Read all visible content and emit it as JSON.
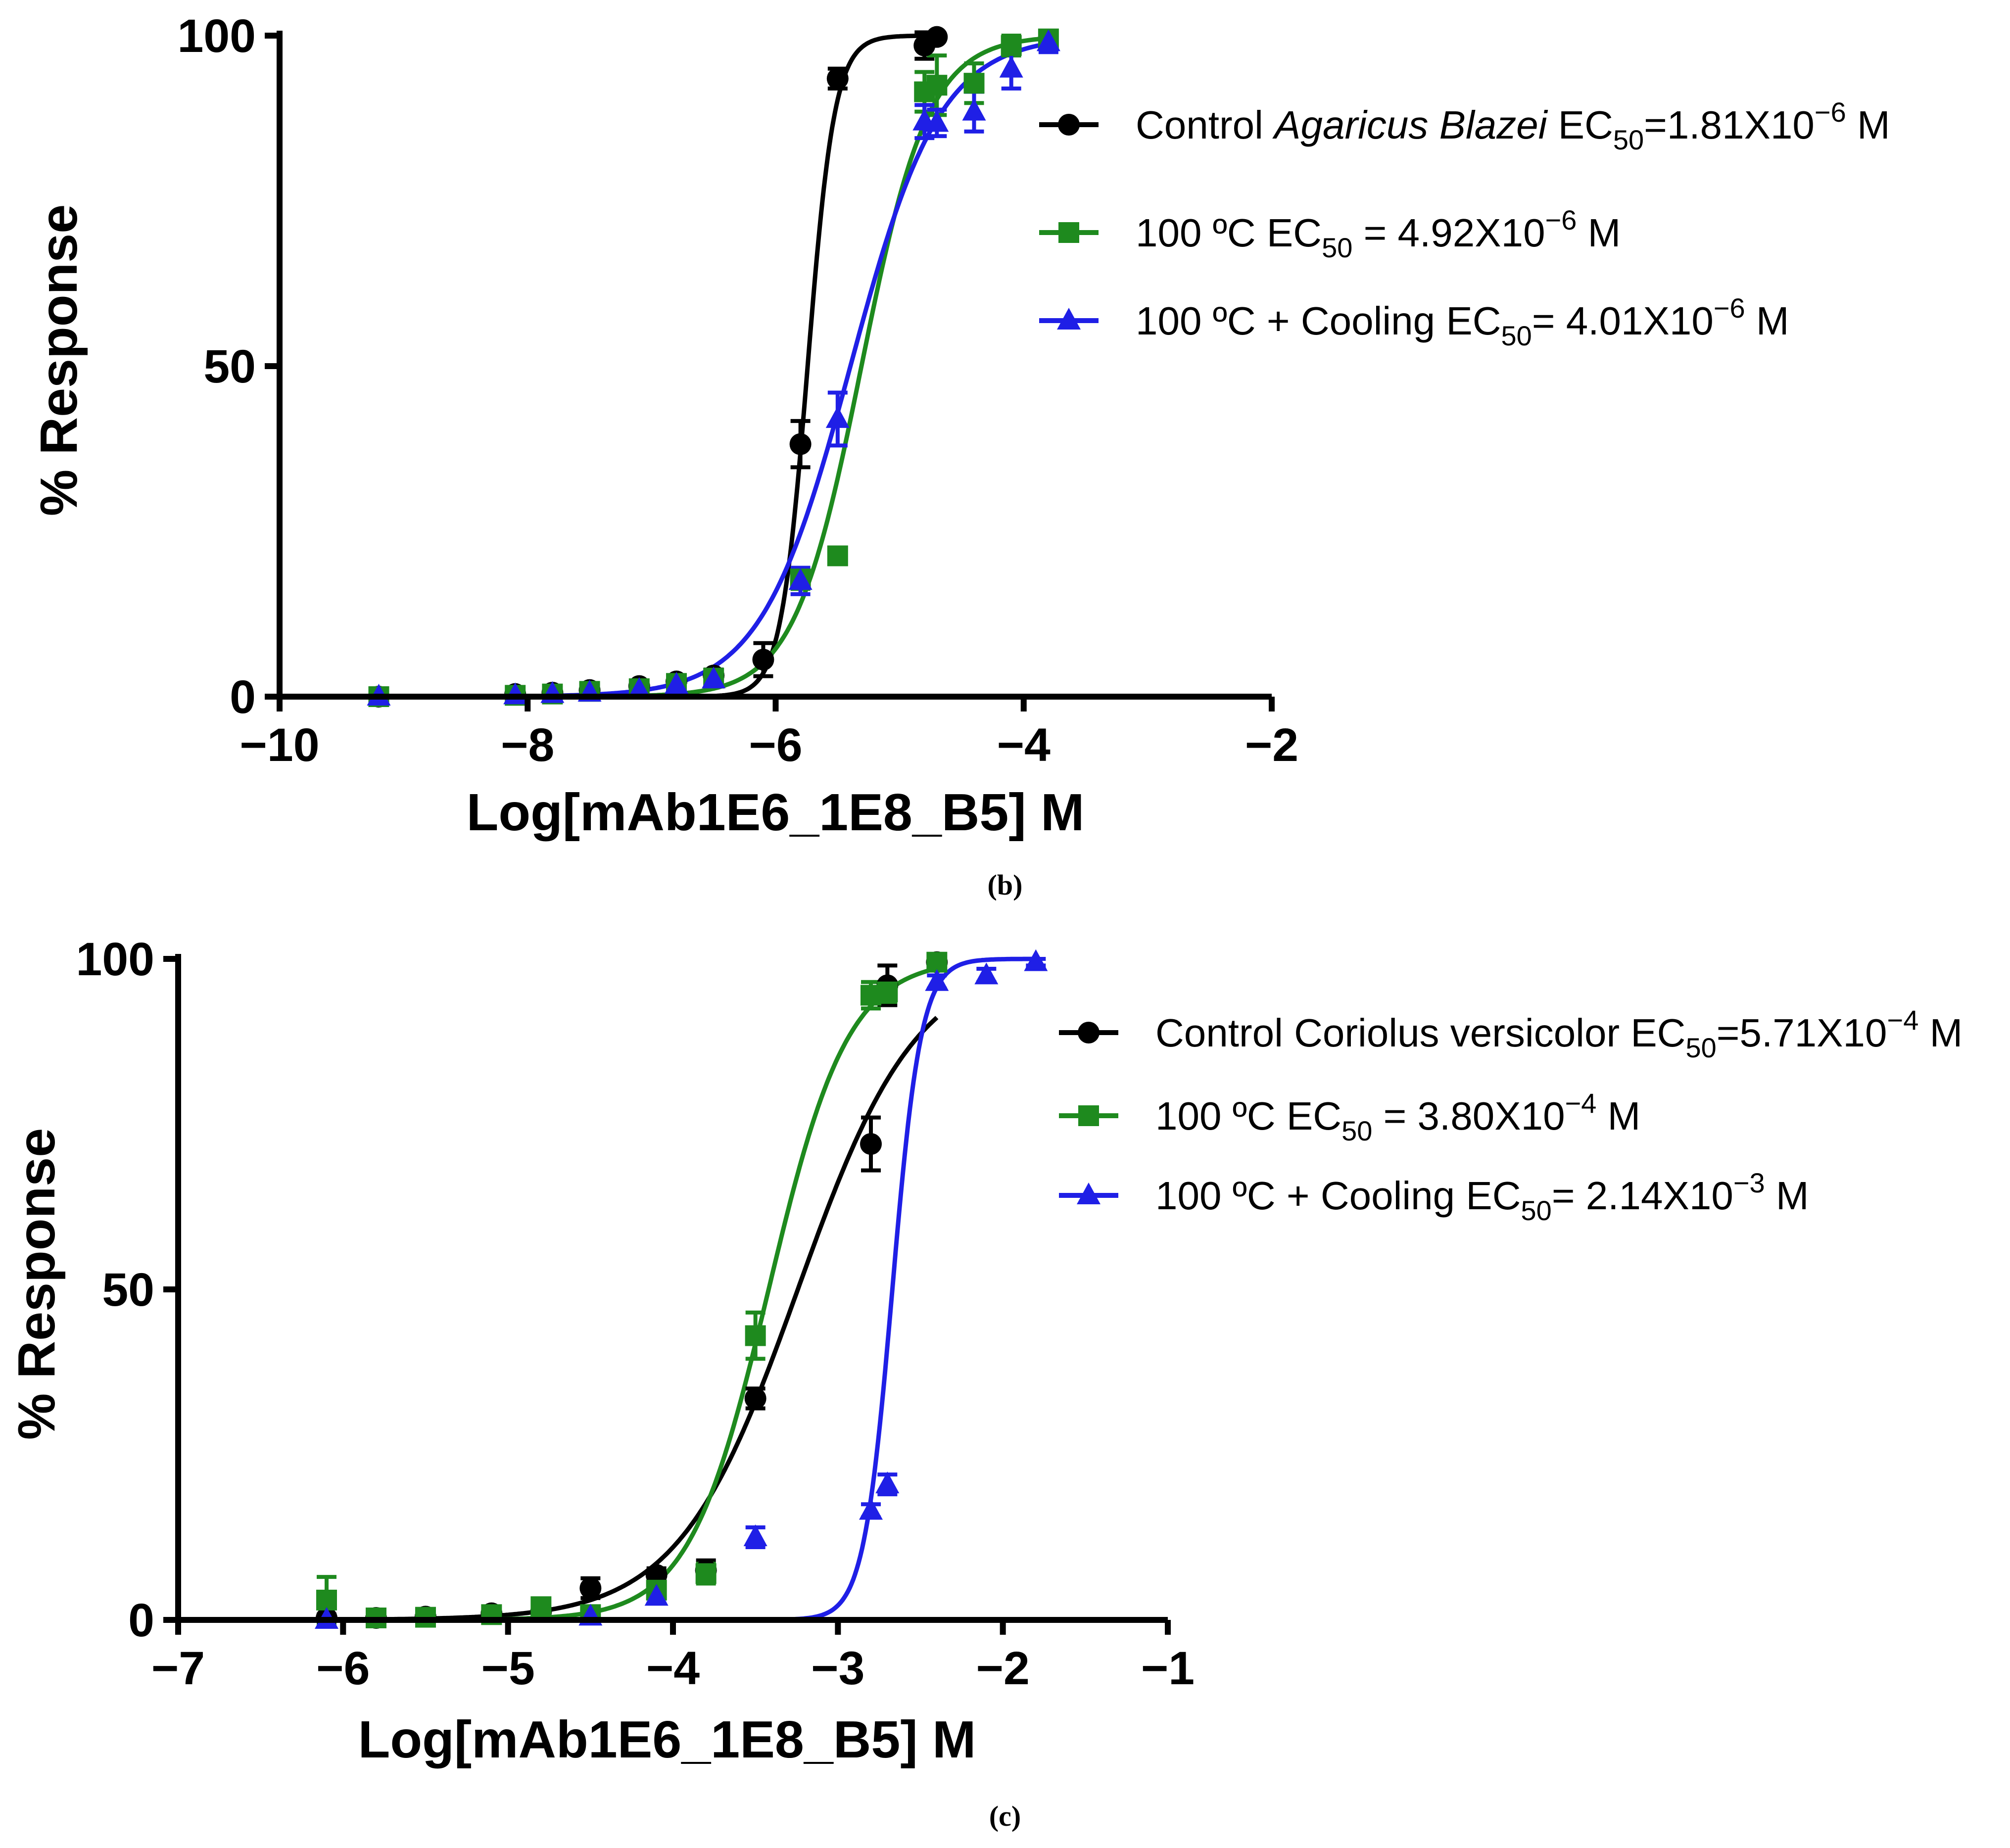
{
  "chart_data": [
    {
      "type": "scatter",
      "panel_label": "(b)",
      "xlabel": "Log[mAb1E6_1E8_B5] M",
      "ylabel": "% Response",
      "xlim": [
        -10,
        -2
      ],
      "ylim": [
        0,
        100
      ],
      "xticks": [
        -10,
        -8,
        -6,
        -4,
        -2
      ],
      "xtick_labels": [
        "−10",
        "−8",
        "−6",
        "−4",
        "−2"
      ],
      "yticks": [
        0,
        50,
        100
      ],
      "ytick_labels": [
        "0",
        "50",
        "100"
      ],
      "grid": false,
      "legend_position": "top-right",
      "series": [
        {
          "name": "Control Agaricus Blazei EC50=1.81X10−6 M",
          "legend_prefix": "Control ",
          "legend_italic": "Agaricus Blazei",
          "legend_mid": " EC",
          "legend_sub": "50",
          "legend_rest": "=1.81X10",
          "legend_sup": "−6",
          "legend_end": " M",
          "color": "#000000",
          "marker": "circle",
          "logEC50": -5.742,
          "hill": 4.0,
          "x": [
            -9.2,
            -8.1,
            -7.8,
            -7.5,
            -7.1,
            -6.8,
            -6.5,
            -6.1,
            -5.8,
            -5.5,
            -4.8,
            -4.7
          ],
          "y": [
            0.0,
            0.4,
            0.6,
            1.0,
            1.6,
            2.3,
            3.2,
            5.6,
            38.2,
            93.5,
            98.5,
            99.8
          ],
          "err": [
            0.0,
            0.5,
            0.4,
            0.6,
            0.7,
            0.8,
            0.9,
            2.5,
            3.5,
            1.5,
            2.0,
            0.0
          ]
        },
        {
          "name": "100 ºC EC50 = 4.92X10−6 M",
          "legend_prefix": "100 ºC",
          "legend_italic": "",
          "legend_mid": " EC",
          "legend_sub": "50",
          "legend_rest": " = 4.92X10",
          "legend_sup": "−6",
          "legend_end": " M",
          "color": "#1e8a1e",
          "marker": "square",
          "logEC50": -5.308,
          "hill": 1.6,
          "x": [
            -9.2,
            -8.1,
            -7.8,
            -7.5,
            -7.1,
            -6.8,
            -6.5,
            -5.8,
            -5.5,
            -4.8,
            -4.7,
            -4.4,
            -4.1,
            -3.8
          ],
          "y": [
            0.0,
            0.2,
            0.4,
            0.8,
            1.2,
            2.0,
            2.8,
            17.8,
            21.3,
            91.5,
            92.5,
            92.8,
            98.5,
            99.5
          ],
          "err": [
            0.0,
            0.3,
            0.3,
            0.4,
            0.5,
            0.6,
            0.7,
            1.5,
            1.2,
            3.0,
            4.5,
            3.0,
            1.5,
            1.0
          ]
        },
        {
          "name": "100 ºC + Cooling EC50= 4.01X10−6 M",
          "legend_prefix": "100 ºC + Cooling",
          "legend_italic": "",
          "legend_mid": " EC",
          "legend_sub": "50",
          "legend_rest": "= 4.01X10",
          "legend_sup": "−6",
          "legend_end": " M",
          "color": "#1f1fe6",
          "marker": "triangle",
          "logEC50": -5.397,
          "hill": 1.2,
          "x": [
            -9.2,
            -8.1,
            -7.8,
            -7.5,
            -7.1,
            -6.8,
            -6.5,
            -5.8,
            -5.5,
            -4.8,
            -4.7,
            -4.4,
            -4.1,
            -3.8
          ],
          "y": [
            0.0,
            0.2,
            0.4,
            0.6,
            1.0,
            1.8,
            2.6,
            17.5,
            42.0,
            87.0,
            86.8,
            88.5,
            95.0,
            99.0
          ],
          "err": [
            0.0,
            0.3,
            0.3,
            0.4,
            0.5,
            0.6,
            0.7,
            2.0,
            4.0,
            2.5,
            2.0,
            3.0,
            3.0,
            1.5
          ]
        }
      ]
    },
    {
      "type": "scatter",
      "panel_label": "(c)",
      "xlabel": "Log[mAb1E6_1E8_B5] M",
      "ylabel": "% Response",
      "xlim": [
        -7,
        -1
      ],
      "ylim": [
        0,
        100
      ],
      "xticks": [
        -7,
        -6,
        -5,
        -4,
        -3,
        -2,
        -1
      ],
      "xtick_labels": [
        "−7",
        "−6",
        "−5",
        "−4",
        "−3",
        "−2",
        "−1"
      ],
      "yticks": [
        0,
        50,
        100
      ],
      "ytick_labels": [
        "0",
        "50",
        "100"
      ],
      "grid": false,
      "legend_position": "top-right",
      "series": [
        {
          "name": "Control Coriolus versicolor EC50=5.71X10−4 M",
          "legend_prefix": "Control Coriolus versicolor",
          "legend_italic": "",
          "legend_mid": " EC",
          "legend_sub": "50",
          "legend_rest": "=5.71X10",
          "legend_sup": "−4",
          "legend_end": " M",
          "color": "#000000",
          "marker": "circle",
          "logEC50": -3.243,
          "hill": 1.2,
          "x": [
            -6.1,
            -5.8,
            -5.5,
            -5.1,
            -4.8,
            -4.5,
            -4.1,
            -3.8,
            -3.5,
            -2.8,
            -2.7,
            -2.4
          ],
          "y": [
            0.3,
            0.3,
            0.5,
            1.0,
            1.2,
            4.8,
            6.8,
            7.5,
            33.5,
            72.0,
            96.0,
            99.5
          ],
          "err": [
            0.5,
            0.4,
            0.5,
            0.8,
            1.0,
            1.5,
            1.0,
            1.5,
            1.5,
            4.0,
            3.0,
            1.0
          ]
        },
        {
          "name": "100 ºC EC50 = 3.80X10−4 M",
          "legend_prefix": "100 ºC",
          "legend_italic": "",
          "legend_mid": " EC",
          "legend_sub": "50",
          "legend_rest": " = 3.80X10",
          "legend_sup": "−4",
          "legend_end": " M",
          "color": "#1e8a1e",
          "marker": "square",
          "logEC50": -3.42,
          "hill": 1.8,
          "x": [
            -6.1,
            -5.8,
            -5.5,
            -5.1,
            -4.8,
            -4.5,
            -4.1,
            -3.8,
            -3.5,
            -2.8,
            -2.7,
            -2.4
          ],
          "y": [
            3.0,
            0.3,
            0.4,
            0.8,
            2.0,
            0.8,
            4.5,
            7.0,
            43.0,
            94.5,
            95.0,
            99.5
          ],
          "err": [
            3.5,
            0.4,
            0.5,
            0.6,
            0.8,
            0.6,
            1.0,
            1.5,
            3.5,
            2.0,
            1.5,
            1.0
          ]
        },
        {
          "name": "100 ºC + Cooling EC50= 2.14X10−3 M",
          "legend_prefix": "100 ºC + Cooling",
          "legend_italic": "",
          "legend_mid": " EC",
          "legend_sub": "50",
          "legend_rest": "= 2.14X10",
          "legend_sup": "−3",
          "legend_end": " M",
          "color": "#1f1fe6",
          "marker": "triangle",
          "logEC50": -2.67,
          "hill": 5.0,
          "x": [
            -6.1,
            -4.5,
            -4.1,
            -3.5,
            -2.8,
            -2.7,
            -2.4,
            -2.1,
            -1.8
          ],
          "y": [
            0.0,
            0.5,
            3.5,
            12.5,
            16.5,
            20.5,
            96.5,
            97.5,
            99.5
          ],
          "err": [
            0.0,
            0.5,
            1.0,
            1.5,
            1.0,
            1.5,
            1.0,
            1.0,
            0.5
          ]
        }
      ]
    }
  ]
}
